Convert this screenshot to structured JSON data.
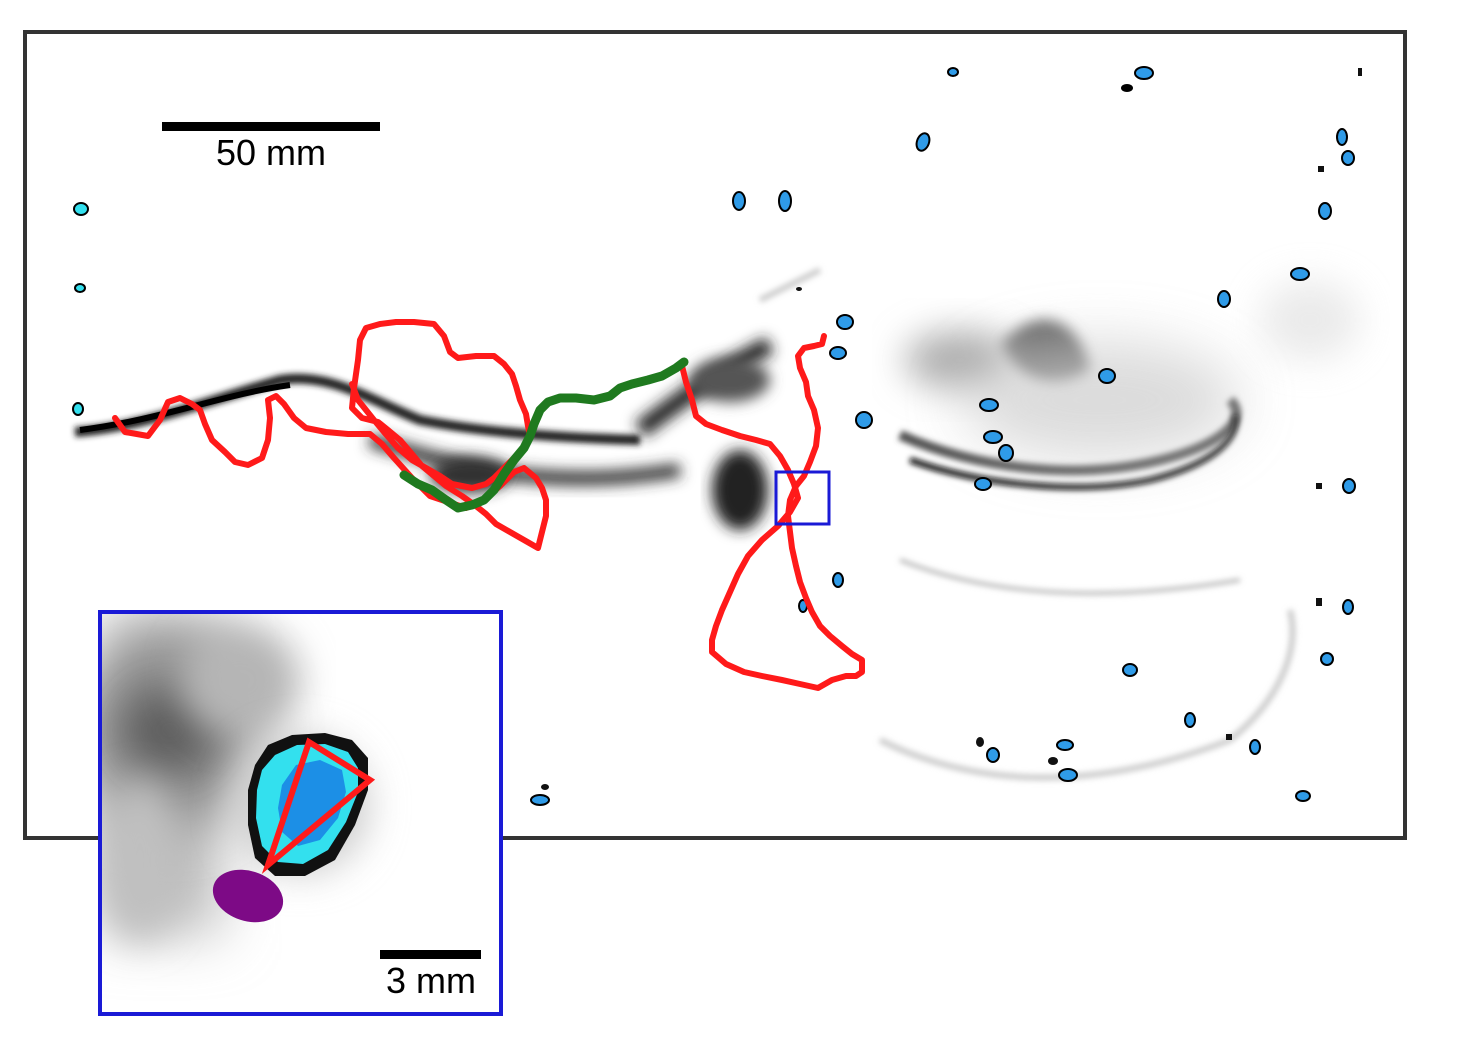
{
  "main_scale_bar": {
    "label": "50 mm"
  },
  "inset_scale_bar": {
    "label": "3 mm"
  },
  "colors": {
    "trajectory_red": "#ff1a1a",
    "trajectory_green": "#1f7a1f",
    "zoom_box_blue": "#1a1ad6",
    "particle_fill": "#2f9be8",
    "particle_edge_cyan": "#33e0ee",
    "purple_blob": "#7d0a86",
    "frame_border": "#333333",
    "plume_dark": "#111111"
  }
}
